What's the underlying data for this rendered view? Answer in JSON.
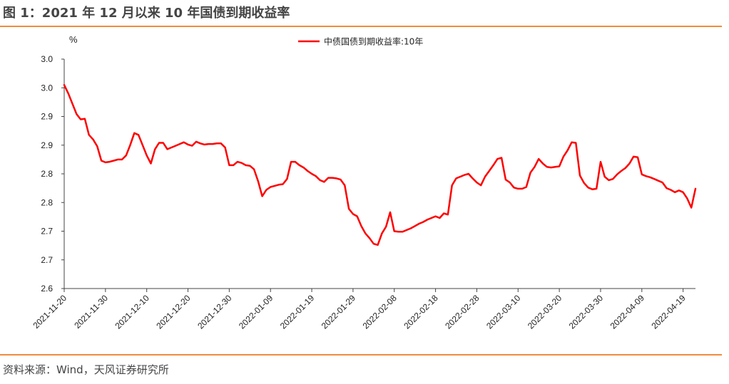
{
  "header": {
    "title": "图 1：2021 年 12 月以来 10 年国债到期收益率"
  },
  "footer": {
    "source": "资料来源：Wind，天风证券研究所"
  },
  "colors": {
    "accent_rule": "#f08c3c",
    "series_line": "#ff0000"
  },
  "chart_data": {
    "type": "line",
    "title": "",
    "xlabel": "",
    "ylabel": "%",
    "y_tick_labels": [
      "2.6",
      "2.7",
      "2.7",
      "2.8",
      "2.8",
      "2.9",
      "2.9",
      "3.0",
      "3.0"
    ],
    "y_tick_values": [
      2.6,
      2.65,
      2.7,
      2.75,
      2.8,
      2.85,
      2.9,
      2.95,
      3.0
    ],
    "ylim": [
      2.6,
      3.0
    ],
    "xlim": [
      "2021-11-20",
      "2022-04-22"
    ],
    "x_tick_labels": [
      "2021-11-20",
      "2021-11-30",
      "2021-12-10",
      "2021-12-20",
      "2021-12-30",
      "2022-01-09",
      "2022-01-19",
      "2022-01-29",
      "2022-02-08",
      "2022-02-18",
      "2022-02-28",
      "2022-03-10",
      "2022-03-20",
      "2022-03-30",
      "2022-04-09",
      "2022-04-19"
    ],
    "legend_position": "top-center",
    "grid": false,
    "series": [
      {
        "name": "中债国债到期收益率:10年",
        "points": [
          [
            "2021-11-20",
            2.955
          ],
          [
            "2021-11-21",
            2.94
          ],
          [
            "2021-11-22",
            2.922
          ],
          [
            "2021-11-23",
            2.904
          ],
          [
            "2021-11-24",
            2.895
          ],
          [
            "2021-11-25",
            2.896
          ],
          [
            "2021-11-26",
            2.868
          ],
          [
            "2021-11-27",
            2.86
          ],
          [
            "2021-11-28",
            2.848
          ],
          [
            "2021-11-29",
            2.823
          ],
          [
            "2021-11-30",
            2.82
          ],
          [
            "2021-12-01",
            2.821
          ],
          [
            "2021-12-02",
            2.823
          ],
          [
            "2021-12-03",
            2.825
          ],
          [
            "2021-12-04",
            2.825
          ],
          [
            "2021-12-05",
            2.832
          ],
          [
            "2021-12-06",
            2.85
          ],
          [
            "2021-12-07",
            2.871
          ],
          [
            "2021-12-08",
            2.868
          ],
          [
            "2021-12-09",
            2.85
          ],
          [
            "2021-12-10",
            2.832
          ],
          [
            "2021-12-11",
            2.818
          ],
          [
            "2021-12-12",
            2.843
          ],
          [
            "2021-12-13",
            2.854
          ],
          [
            "2021-12-14",
            2.854
          ],
          [
            "2021-12-15",
            2.843
          ],
          [
            "2021-12-16",
            2.846
          ],
          [
            "2021-12-17",
            2.849
          ],
          [
            "2021-12-18",
            2.852
          ],
          [
            "2021-12-19",
            2.855
          ],
          [
            "2021-12-20",
            2.851
          ],
          [
            "2021-12-21",
            2.849
          ],
          [
            "2021-12-22",
            2.856
          ],
          [
            "2021-12-23",
            2.853
          ],
          [
            "2021-12-24",
            2.851
          ],
          [
            "2021-12-25",
            2.852
          ],
          [
            "2021-12-26",
            2.852
          ],
          [
            "2021-12-27",
            2.853
          ],
          [
            "2021-12-28",
            2.853
          ],
          [
            "2021-12-29",
            2.846
          ],
          [
            "2021-12-30",
            2.815
          ],
          [
            "2021-12-31",
            2.815
          ],
          [
            "2022-01-01",
            2.821
          ],
          [
            "2022-01-02",
            2.819
          ],
          [
            "2022-01-03",
            2.815
          ],
          [
            "2022-01-04",
            2.814
          ],
          [
            "2022-01-05",
            2.808
          ],
          [
            "2022-01-06",
            2.787
          ],
          [
            "2022-01-07",
            2.761
          ],
          [
            "2022-01-08",
            2.772
          ],
          [
            "2022-01-09",
            2.777
          ],
          [
            "2022-01-10",
            2.779
          ],
          [
            "2022-01-11",
            2.781
          ],
          [
            "2022-01-12",
            2.782
          ],
          [
            "2022-01-13",
            2.791
          ],
          [
            "2022-01-14",
            2.821
          ],
          [
            "2022-01-15",
            2.821
          ],
          [
            "2022-01-16",
            2.815
          ],
          [
            "2022-01-17",
            2.811
          ],
          [
            "2022-01-18",
            2.805
          ],
          [
            "2022-01-19",
            2.8
          ],
          [
            "2022-01-20",
            2.796
          ],
          [
            "2022-01-21",
            2.789
          ],
          [
            "2022-01-22",
            2.786
          ],
          [
            "2022-01-23",
            2.793
          ],
          [
            "2022-01-24",
            2.793
          ],
          [
            "2022-01-25",
            2.792
          ],
          [
            "2022-01-26",
            2.79
          ],
          [
            "2022-01-27",
            2.78
          ],
          [
            "2022-01-28",
            2.739
          ],
          [
            "2022-01-29",
            2.73
          ],
          [
            "2022-01-30",
            2.726
          ],
          [
            "2022-01-31",
            2.709
          ],
          [
            "2022-02-01",
            2.696
          ],
          [
            "2022-02-02",
            2.688
          ],
          [
            "2022-02-03",
            2.678
          ],
          [
            "2022-02-04",
            2.676
          ],
          [
            "2022-02-05",
            2.696
          ],
          [
            "2022-02-06",
            2.708
          ],
          [
            "2022-02-07",
            2.733
          ],
          [
            "2022-02-08",
            2.7
          ],
          [
            "2022-02-09",
            2.699
          ],
          [
            "2022-02-10",
            2.699
          ],
          [
            "2022-02-11",
            2.702
          ],
          [
            "2022-02-12",
            2.705
          ],
          [
            "2022-02-13",
            2.709
          ],
          [
            "2022-02-14",
            2.713
          ],
          [
            "2022-02-15",
            2.716
          ],
          [
            "2022-02-16",
            2.72
          ],
          [
            "2022-02-17",
            2.723
          ],
          [
            "2022-02-18",
            2.726
          ],
          [
            "2022-02-19",
            2.723
          ],
          [
            "2022-02-20",
            2.731
          ],
          [
            "2022-02-21",
            2.729
          ],
          [
            "2022-02-22",
            2.78
          ],
          [
            "2022-02-23",
            2.792
          ],
          [
            "2022-02-24",
            2.795
          ],
          [
            "2022-02-25",
            2.798
          ],
          [
            "2022-02-26",
            2.8
          ],
          [
            "2022-02-27",
            2.792
          ],
          [
            "2022-02-28",
            2.785
          ],
          [
            "2022-03-01",
            2.78
          ],
          [
            "2022-03-02",
            2.795
          ],
          [
            "2022-03-03",
            2.805
          ],
          [
            "2022-03-04",
            2.815
          ],
          [
            "2022-03-05",
            2.826
          ],
          [
            "2022-03-06",
            2.828
          ],
          [
            "2022-03-07",
            2.79
          ],
          [
            "2022-03-08",
            2.785
          ],
          [
            "2022-03-09",
            2.776
          ],
          [
            "2022-03-10",
            2.774
          ],
          [
            "2022-03-11",
            2.774
          ],
          [
            "2022-03-12",
            2.777
          ],
          [
            "2022-03-13",
            2.802
          ],
          [
            "2022-03-14",
            2.812
          ],
          [
            "2022-03-15",
            2.826
          ],
          [
            "2022-03-16",
            2.818
          ],
          [
            "2022-03-17",
            2.812
          ],
          [
            "2022-03-18",
            2.811
          ],
          [
            "2022-03-19",
            2.812
          ],
          [
            "2022-03-20",
            2.813
          ],
          [
            "2022-03-21",
            2.83
          ],
          [
            "2022-03-22",
            2.841
          ],
          [
            "2022-03-23",
            2.855
          ],
          [
            "2022-03-24",
            2.854
          ],
          [
            "2022-03-25",
            2.797
          ],
          [
            "2022-03-26",
            2.784
          ],
          [
            "2022-03-27",
            2.776
          ],
          [
            "2022-03-28",
            2.773
          ],
          [
            "2022-03-29",
            2.774
          ],
          [
            "2022-03-30",
            2.821
          ],
          [
            "2022-03-31",
            2.795
          ],
          [
            "2022-04-01",
            2.789
          ],
          [
            "2022-04-02",
            2.791
          ],
          [
            "2022-04-03",
            2.799
          ],
          [
            "2022-04-04",
            2.805
          ],
          [
            "2022-04-05",
            2.81
          ],
          [
            "2022-04-06",
            2.818
          ],
          [
            "2022-04-07",
            2.83
          ],
          [
            "2022-04-08",
            2.829
          ],
          [
            "2022-04-09",
            2.799
          ],
          [
            "2022-04-10",
            2.796
          ],
          [
            "2022-04-11",
            2.794
          ],
          [
            "2022-04-12",
            2.791
          ],
          [
            "2022-04-13",
            2.788
          ],
          [
            "2022-04-14",
            2.785
          ],
          [
            "2022-04-15",
            2.775
          ],
          [
            "2022-04-16",
            2.772
          ],
          [
            "2022-04-17",
            2.768
          ],
          [
            "2022-04-18",
            2.771
          ],
          [
            "2022-04-19",
            2.768
          ],
          [
            "2022-04-20",
            2.757
          ],
          [
            "2022-04-21",
            2.741
          ],
          [
            "2022-04-22",
            2.774
          ]
        ]
      }
    ]
  }
}
